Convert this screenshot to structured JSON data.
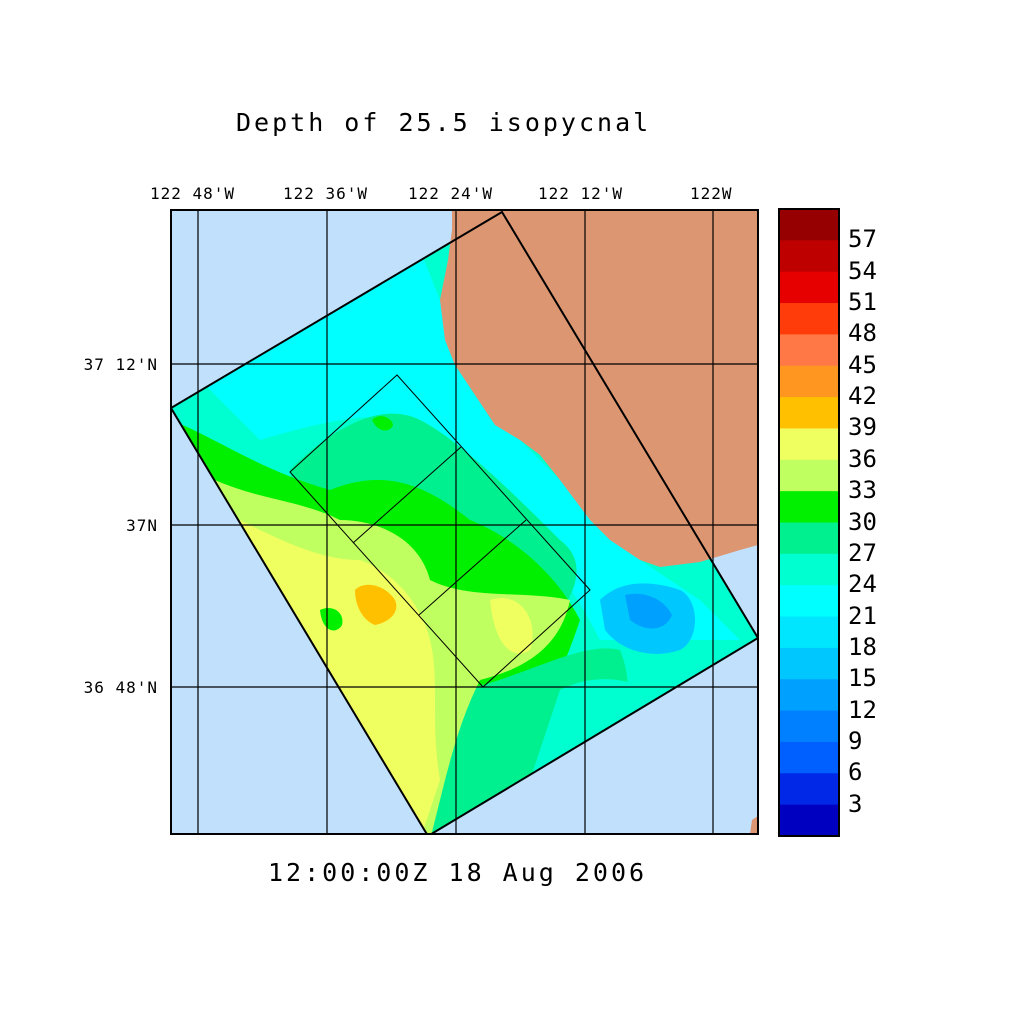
{
  "title": "Depth of 25.5 isopycnal",
  "time_label": "12:00:00Z  18 Aug 2006",
  "map": {
    "lon_ticks": [
      "122 48'W",
      "122 36'W",
      "122 24'W",
      "122 12'W",
      "122W"
    ],
    "lat_ticks": [
      "37 12'N",
      "37N",
      "36 48'N"
    ],
    "land_color": "#dc9672",
    "water_color": "#c0e0fc",
    "grid": true
  },
  "colorbar": {
    "labels": [
      "57",
      "54",
      "51",
      "48",
      "45",
      "42",
      "39",
      "36",
      "33",
      "30",
      "27",
      "24",
      "21",
      "18",
      "15",
      "12",
      "9",
      "6",
      "3"
    ],
    "colors": [
      "#960000",
      "#be0000",
      "#e60000",
      "#ff3c0a",
      "#ff7846",
      "#ff9620",
      "#ffc000",
      "#f0ff60",
      "#c0ff60",
      "#00f000",
      "#00f090",
      "#00ffd0",
      "#00ffff",
      "#00e6ff",
      "#00c8ff",
      "#00a0ff",
      "#0080ff",
      "#0060ff",
      "#0028e6",
      "#0000c0"
    ]
  }
}
